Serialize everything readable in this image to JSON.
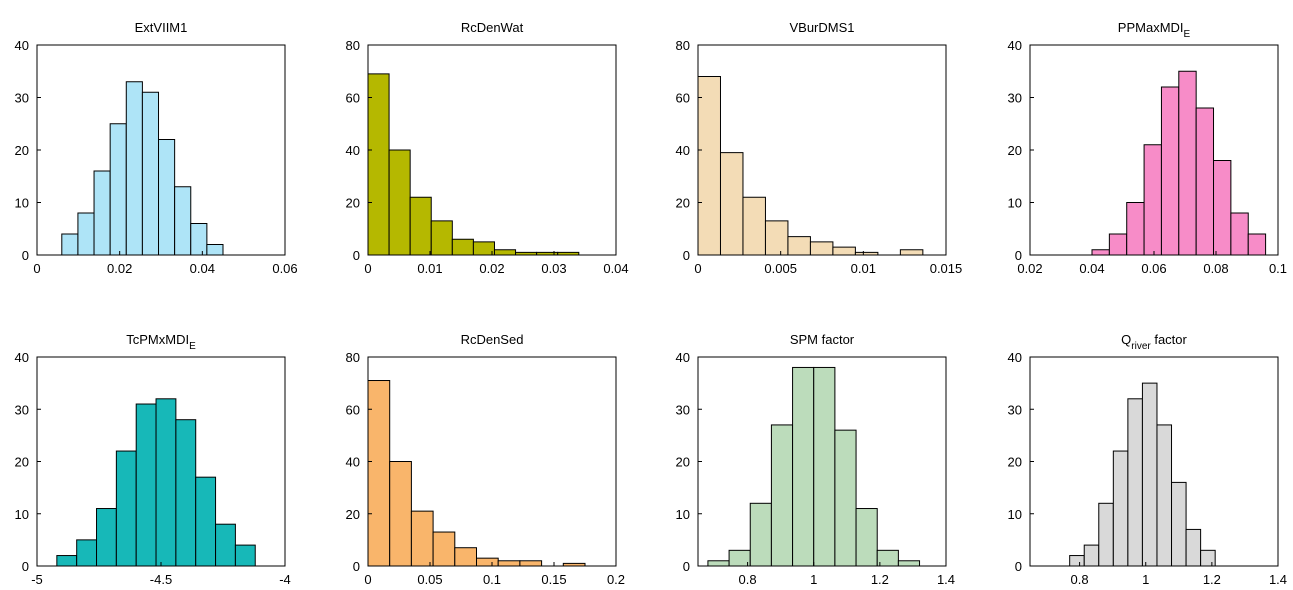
{
  "chart_data": [
    {
      "type": "histogram",
      "title": "ExtVIIM1",
      "color": "#aee4f7",
      "bins": [
        0.006,
        0.0099,
        0.0138,
        0.0177,
        0.0216,
        0.0255,
        0.0294,
        0.0333,
        0.0372,
        0.0411,
        0.045
      ],
      "counts": [
        4,
        8,
        16,
        25,
        33,
        31,
        22,
        13,
        6,
        2
      ],
      "xlim": [
        0,
        0.06
      ],
      "xticks": [
        0,
        0.02,
        0.04,
        0.06
      ],
      "ylim": [
        0,
        40
      ],
      "yticks": [
        0,
        10,
        20,
        30,
        40
      ]
    },
    {
      "type": "histogram",
      "title": "RcDenWat",
      "color": "#b5b800",
      "bins": [
        0,
        0.0034,
        0.0068,
        0.0102,
        0.0136,
        0.017,
        0.0204,
        0.0238,
        0.0272,
        0.0306,
        0.034
      ],
      "counts": [
        69,
        40,
        22,
        13,
        6,
        5,
        2,
        1,
        1,
        1
      ],
      "xlim": [
        0,
        0.04
      ],
      "xticks": [
        0,
        0.01,
        0.02,
        0.03,
        0.04
      ],
      "ylim": [
        0,
        80
      ],
      "yticks": [
        0,
        20,
        40,
        60,
        80
      ]
    },
    {
      "type": "histogram",
      "title": "VBurDMS1",
      "color": "#f3dcb6",
      "bins": [
        0,
        0.00136,
        0.00272,
        0.00408,
        0.00544,
        0.0068,
        0.00816,
        0.00952,
        0.01088,
        0.01224,
        0.0136
      ],
      "counts": [
        68,
        39,
        22,
        13,
        7,
        5,
        3,
        1,
        0,
        2
      ],
      "xlim": [
        0,
        0.015
      ],
      "xticks": [
        0,
        0.005,
        0.01,
        0.015
      ],
      "ylim": [
        0,
        80
      ],
      "yticks": [
        0,
        20,
        40,
        60,
        80
      ]
    },
    {
      "type": "histogram",
      "title": {
        "text": "PPMaxMDI",
        "sub": "E"
      },
      "color": "#f78cc8",
      "bins": [
        0.04,
        0.0456,
        0.0512,
        0.0568,
        0.0624,
        0.068,
        0.0736,
        0.0792,
        0.0848,
        0.0904,
        0.096
      ],
      "counts": [
        1,
        4,
        10,
        21,
        32,
        35,
        28,
        18,
        8,
        4
      ],
      "xlim": [
        0.02,
        0.1
      ],
      "xticks": [
        0.02,
        0.04,
        0.06,
        0.08,
        0.1
      ],
      "ylim": [
        0,
        40
      ],
      "yticks": [
        0,
        10,
        20,
        30,
        40
      ]
    },
    {
      "type": "histogram",
      "title": {
        "text": "TcPMxMDI",
        "sub": "E"
      },
      "color": "#17b8b8",
      "bins": [
        -4.92,
        -4.84,
        -4.76,
        -4.68,
        -4.6,
        -4.52,
        -4.44,
        -4.36,
        -4.28,
        -4.2,
        -4.12
      ],
      "counts": [
        2,
        5,
        11,
        22,
        31,
        32,
        28,
        17,
        8,
        4
      ],
      "xlim": [
        -5,
        -4
      ],
      "xticks": [
        -5,
        -4.5,
        -4
      ],
      "ylim": [
        0,
        40
      ],
      "yticks": [
        0,
        10,
        20,
        30,
        40
      ]
    },
    {
      "type": "histogram",
      "title": "RcDenSed",
      "color": "#f9b56b",
      "bins": [
        0,
        0.0175,
        0.035,
        0.0525,
        0.07,
        0.0875,
        0.105,
        0.1225,
        0.14,
        0.1575,
        0.175
      ],
      "counts": [
        71,
        40,
        21,
        13,
        7,
        3,
        2,
        2,
        0,
        1
      ],
      "xlim": [
        0,
        0.2
      ],
      "xticks": [
        0,
        0.05,
        0.1,
        0.15,
        0.2
      ],
      "ylim": [
        0,
        80
      ],
      "yticks": [
        0,
        20,
        40,
        60,
        80
      ]
    },
    {
      "type": "histogram",
      "title": "SPM factor",
      "color": "#bcdcbb",
      "bins": [
        0.68,
        0.744,
        0.808,
        0.872,
        0.936,
        1.0,
        1.064,
        1.128,
        1.192,
        1.256,
        1.32
      ],
      "counts": [
        1,
        3,
        12,
        27,
        38,
        38,
        26,
        11,
        3,
        1
      ],
      "xlim": [
        0.65,
        1.4
      ],
      "xticks": [
        0.8,
        1,
        1.2,
        1.4
      ],
      "ylim": [
        0,
        40
      ],
      "yticks": [
        0,
        10,
        20,
        30,
        40
      ]
    },
    {
      "type": "histogram",
      "title": {
        "text": "Q",
        "sub": "river",
        "after": " factor"
      },
      "color": "#d9d9d9",
      "bins": [
        0.77,
        0.814,
        0.858,
        0.902,
        0.946,
        0.99,
        1.034,
        1.078,
        1.122,
        1.166,
        1.21
      ],
      "counts": [
        2,
        4,
        12,
        22,
        32,
        35,
        27,
        16,
        7,
        3
      ],
      "xlim": [
        0.65,
        1.4
      ],
      "xticks": [
        0.8,
        1,
        1.2,
        1.4
      ],
      "ylim": [
        0,
        40
      ],
      "yticks": [
        0,
        10,
        20,
        30,
        40
      ]
    }
  ]
}
